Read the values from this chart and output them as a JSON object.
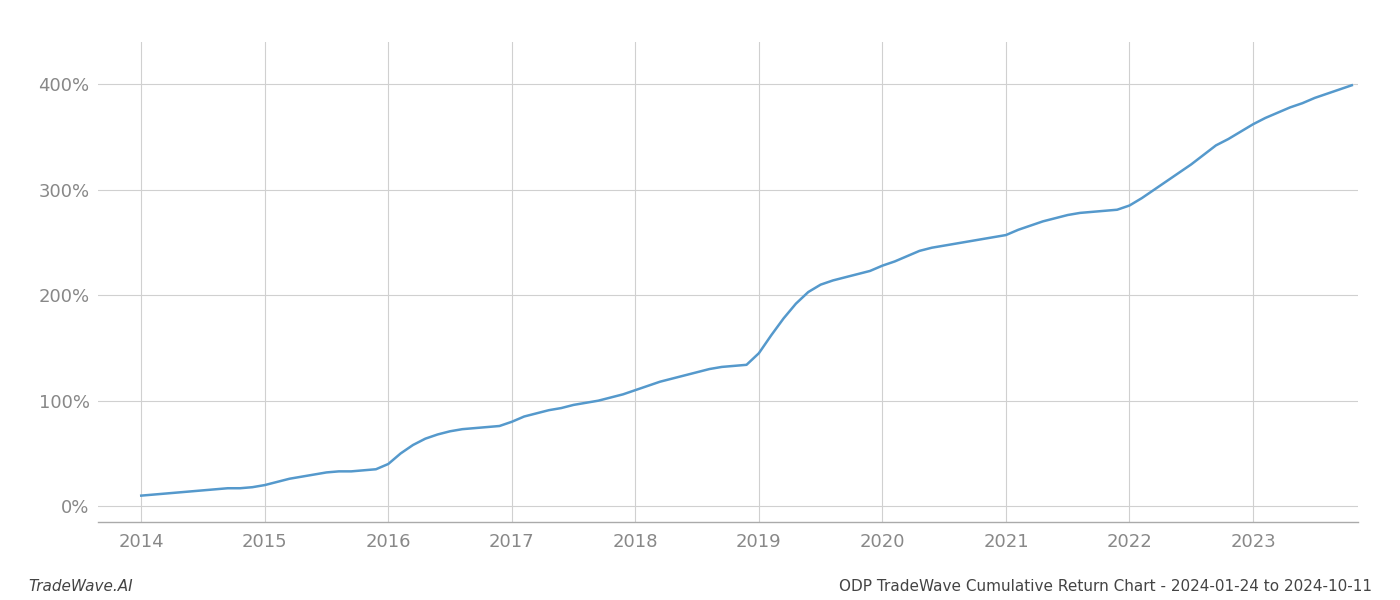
{
  "footer_left": "TradeWave.AI",
  "footer_right": "ODP TradeWave Cumulative Return Chart - 2024-01-24 to 2024-10-11",
  "x_values": [
    2014.0,
    2014.1,
    2014.2,
    2014.3,
    2014.4,
    2014.5,
    2014.6,
    2014.7,
    2014.8,
    2014.9,
    2015.0,
    2015.1,
    2015.2,
    2015.3,
    2015.4,
    2015.5,
    2015.6,
    2015.7,
    2015.8,
    2015.9,
    2016.0,
    2016.1,
    2016.2,
    2016.3,
    2016.4,
    2016.5,
    2016.6,
    2016.7,
    2016.8,
    2016.9,
    2017.0,
    2017.1,
    2017.2,
    2017.3,
    2017.4,
    2017.5,
    2017.6,
    2017.7,
    2017.8,
    2017.9,
    2018.0,
    2018.1,
    2018.2,
    2018.3,
    2018.4,
    2018.5,
    2018.6,
    2018.7,
    2018.8,
    2018.9,
    2019.0,
    2019.1,
    2019.2,
    2019.3,
    2019.4,
    2019.5,
    2019.6,
    2019.7,
    2019.8,
    2019.9,
    2020.0,
    2020.1,
    2020.2,
    2020.3,
    2020.4,
    2020.5,
    2020.6,
    2020.7,
    2020.8,
    2020.9,
    2021.0,
    2021.1,
    2021.2,
    2021.3,
    2021.4,
    2021.5,
    2021.6,
    2021.7,
    2021.8,
    2021.9,
    2022.0,
    2022.1,
    2022.2,
    2022.3,
    2022.4,
    2022.5,
    2022.6,
    2022.7,
    2022.8,
    2022.9,
    2023.0,
    2023.1,
    2023.2,
    2023.3,
    2023.4,
    2023.5,
    2023.6,
    2023.7,
    2023.8
  ],
  "y_values": [
    10,
    11,
    12,
    13,
    14,
    15,
    16,
    17,
    17,
    18,
    20,
    23,
    26,
    28,
    30,
    32,
    33,
    33,
    34,
    35,
    40,
    50,
    58,
    64,
    68,
    71,
    73,
    74,
    75,
    76,
    80,
    85,
    88,
    91,
    93,
    96,
    98,
    100,
    103,
    106,
    110,
    114,
    118,
    121,
    124,
    127,
    130,
    132,
    133,
    134,
    145,
    162,
    178,
    192,
    203,
    210,
    214,
    217,
    220,
    223,
    228,
    232,
    237,
    242,
    245,
    247,
    249,
    251,
    253,
    255,
    257,
    262,
    266,
    270,
    273,
    276,
    278,
    279,
    280,
    281,
    285,
    292,
    300,
    308,
    316,
    324,
    333,
    342,
    348,
    355,
    362,
    368,
    373,
    378,
    382,
    387,
    391,
    395,
    399
  ],
  "line_color": "#5599cc",
  "line_width": 1.8,
  "background_color": "#ffffff",
  "grid_color": "#d0d0d0",
  "xlim": [
    2013.65,
    2023.85
  ],
  "ylim": [
    -15,
    440
  ],
  "xticks": [
    2014,
    2015,
    2016,
    2017,
    2018,
    2019,
    2020,
    2021,
    2022,
    2023
  ],
  "yticks": [
    0,
    100,
    200,
    300,
    400
  ],
  "ytick_labels": [
    "0%",
    "100%",
    "200%",
    "300%",
    "400%"
  ],
  "xtick_labels": [
    "2014",
    "2015",
    "2016",
    "2017",
    "2018",
    "2019",
    "2020",
    "2021",
    "2022",
    "2023"
  ],
  "footer_fontsize": 11,
  "tick_fontsize": 13,
  "tick_color": "#888888"
}
